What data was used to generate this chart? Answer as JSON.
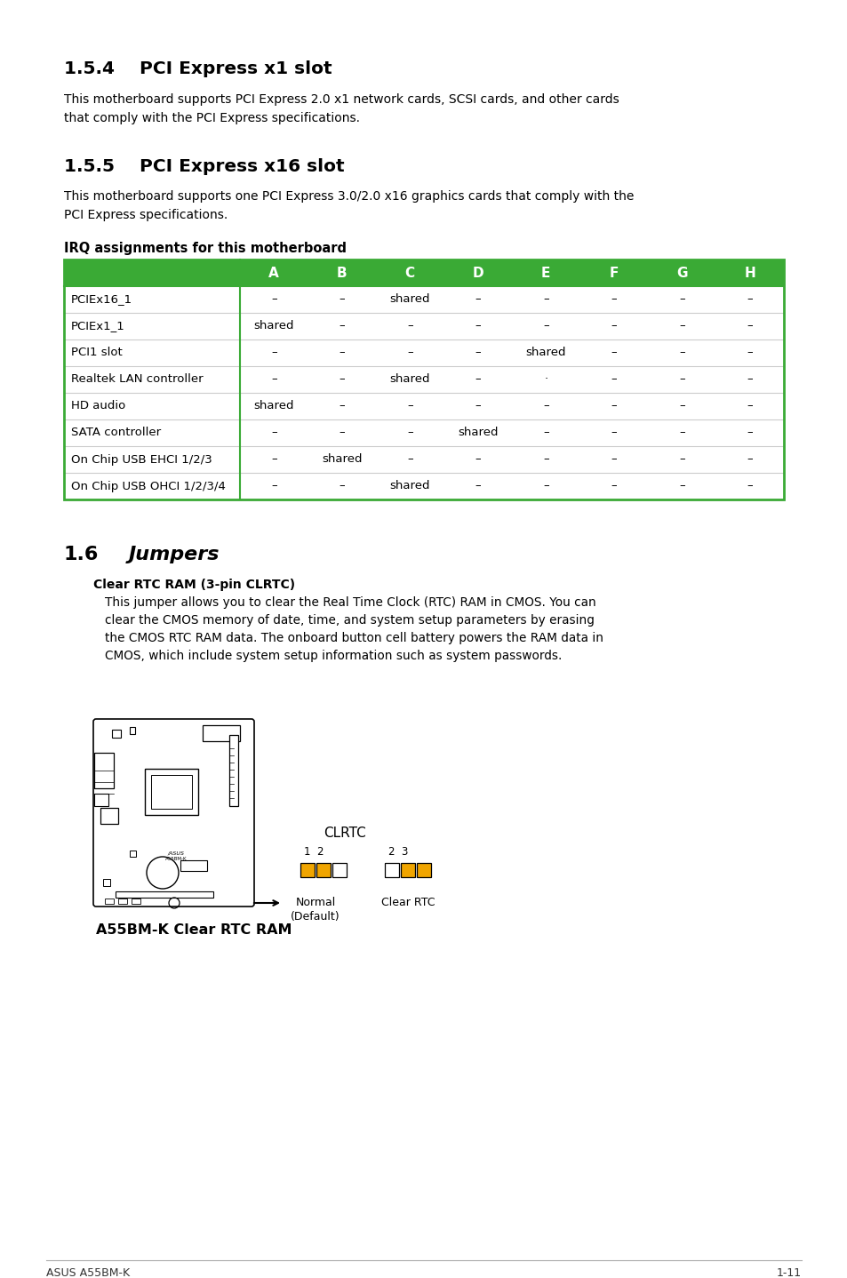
{
  "page_bg": "#ffffff",
  "section_154_title": "1.5.4    PCI Express x1 slot",
  "section_154_text": "This motherboard supports PCI Express 2.0 x1 network cards, SCSI cards, and other cards\nthat comply with the PCI Express specifications.",
  "section_155_title": "1.5.5    PCI Express x16 slot",
  "section_155_text": "This motherboard supports one PCI Express 3.0/2.0 x16 graphics cards that comply with the\nPCI Express specifications.",
  "irq_title": "IRQ assignments for this motherboard",
  "table_header": [
    "",
    "A",
    "B",
    "C",
    "D",
    "E",
    "F",
    "G",
    "H"
  ],
  "table_header_bg": "#3aaa35",
  "table_header_color": "#ffffff",
  "table_rows": [
    [
      "PCIEx16_1",
      "–",
      "–",
      "shared",
      "–",
      "–",
      "–",
      "–",
      "–"
    ],
    [
      "PCIEx1_1",
      "shared",
      "–",
      "–",
      "–",
      "–",
      "–",
      "–",
      "–"
    ],
    [
      "PCI1 slot",
      "–",
      "–",
      "–",
      "–",
      "shared",
      "–",
      "–",
      "–"
    ],
    [
      "Realtek LAN controller",
      "–",
      "–",
      "shared",
      "–",
      "·",
      "–",
      "–",
      "–"
    ],
    [
      "HD audio",
      "shared",
      "–",
      "–",
      "–",
      "–",
      "–",
      "–",
      "–"
    ],
    [
      "SATA controller",
      "–",
      "–",
      "–",
      "shared",
      "–",
      "–",
      "–",
      "–"
    ],
    [
      "On Chip USB EHCI 1/2/3",
      "–",
      "shared",
      "–",
      "–",
      "–",
      "–",
      "–",
      "–"
    ],
    [
      "On Chip USB OHCI 1/2/3/4",
      "–",
      "–",
      "shared",
      "–",
      "–",
      "–",
      "–",
      "–"
    ]
  ],
  "table_border_color": "#3aaa35",
  "table_row_line_color": "#cccccc",
  "section_16_title": "1.6",
  "section_16_title2": "Jumpers",
  "clrtc_subtitle": "Clear RTC RAM (3-pin CLRTC)",
  "clrtc_text": "This jumper allows you to clear the Real Time Clock (RTC) RAM in CMOS. You can\nclear the CMOS memory of date, time, and system setup parameters by erasing\nthe CMOS RTC RAM data. The onboard button cell battery powers the RAM data in\nCMOS, which include system setup information such as system passwords.",
  "clrtc_label": "CLRTC",
  "normal_label": "Normal\n(Default)",
  "clear_rtc_label": "Clear RTC",
  "pin_label_1": "1  2",
  "pin_label_2": "2  3",
  "board_caption": "A55BM-K Clear RTC RAM",
  "footer_left": "ASUS A55BM-K",
  "footer_right": "1-11",
  "jumper_yellow": "#f0a500"
}
